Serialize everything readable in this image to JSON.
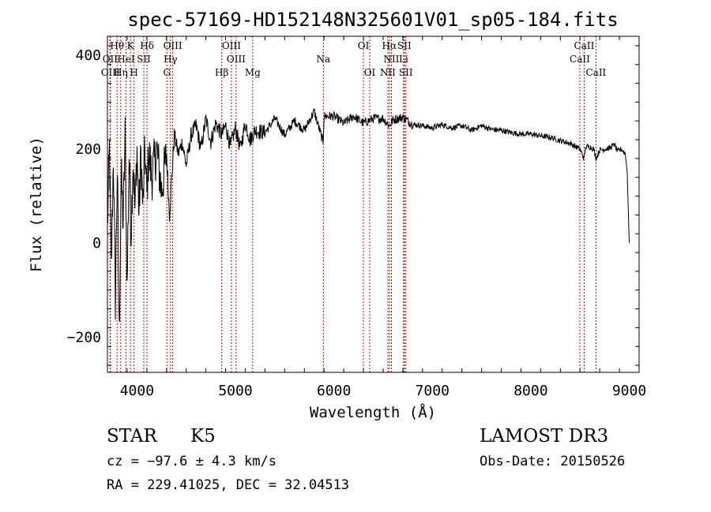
{
  "chart_data": {
    "type": "line",
    "title": "spec-57169-HD152148N325601V01_sp05-184.fits",
    "xlabel": "Wavelength (Å)",
    "ylabel": "Flux (relative)",
    "xlim": [
      3700,
      9100
    ],
    "ylim": [
      -275,
      440
    ],
    "x_ticks": [
      4000,
      5000,
      6000,
      7000,
      8000,
      9000
    ],
    "y_ticks": [
      -200,
      0,
      200,
      400
    ],
    "x_tick_labels": [
      "4000",
      "5000",
      "6000",
      "7000",
      "8000",
      "9000"
    ],
    "y_tick_labels": [
      "−200",
      "0",
      "200",
      "400"
    ],
    "series": [
      {
        "name": "flux",
        "color": "#000000",
        "anchors": [
          [
            3700,
            30
          ],
          [
            3720,
            200
          ],
          [
            3740,
            -60
          ],
          [
            3760,
            190
          ],
          [
            3780,
            -120
          ],
          [
            3800,
            160
          ],
          [
            3820,
            -200
          ],
          [
            3840,
            150
          ],
          [
            3860,
            40
          ],
          [
            3880,
            230
          ],
          [
            3900,
            -100
          ],
          [
            3920,
            190
          ],
          [
            3940,
            20
          ],
          [
            3960,
            180
          ],
          [
            3980,
            70
          ],
          [
            4000,
            200
          ],
          [
            4020,
            60
          ],
          [
            4040,
            190
          ],
          [
            4060,
            70
          ],
          [
            4080,
            200
          ],
          [
            4100,
            100
          ],
          [
            4120,
            195
          ],
          [
            4150,
            140
          ],
          [
            4200,
            200
          ],
          [
            4250,
            110
          ],
          [
            4300,
            190
          ],
          [
            4330,
            60
          ],
          [
            4380,
            230
          ],
          [
            4420,
            190
          ],
          [
            4460,
            215
          ],
          [
            4500,
            165
          ],
          [
            4550,
            230
          ],
          [
            4600,
            250
          ],
          [
            4650,
            200
          ],
          [
            4700,
            265
          ],
          [
            4750,
            215
          ],
          [
            4800,
            255
          ],
          [
            4860,
            230
          ],
          [
            4900,
            250
          ],
          [
            4950,
            205
          ],
          [
            5000,
            245
          ],
          [
            5050,
            200
          ],
          [
            5100,
            255
          ],
          [
            5150,
            220
          ],
          [
            5200,
            240
          ],
          [
            5300,
            235
          ],
          [
            5400,
            265
          ],
          [
            5500,
            230
          ],
          [
            5600,
            260
          ],
          [
            5700,
            240
          ],
          [
            5800,
            280
          ],
          [
            5890,
            215
          ],
          [
            5900,
            270
          ],
          [
            6000,
            270
          ],
          [
            6100,
            255
          ],
          [
            6200,
            270
          ],
          [
            6300,
            255
          ],
          [
            6400,
            265
          ],
          [
            6500,
            265
          ],
          [
            6563,
            250
          ],
          [
            6600,
            262
          ],
          [
            6700,
            268
          ],
          [
            6800,
            252
          ],
          [
            6900,
            250
          ],
          [
            7000,
            245
          ],
          [
            7100,
            252
          ],
          [
            7200,
            245
          ],
          [
            7300,
            250
          ],
          [
            7400,
            240
          ],
          [
            7500,
            250
          ],
          [
            7600,
            242
          ],
          [
            7700,
            240
          ],
          [
            7800,
            235
          ],
          [
            7900,
            232
          ],
          [
            8000,
            232
          ],
          [
            8100,
            228
          ],
          [
            8200,
            225
          ],
          [
            8300,
            218
          ],
          [
            8400,
            212
          ],
          [
            8500,
            200
          ],
          [
            8540,
            180
          ],
          [
            8560,
            205
          ],
          [
            8600,
            205
          ],
          [
            8640,
            200
          ],
          [
            8662,
            180
          ],
          [
            8700,
            198
          ],
          [
            8800,
            202
          ],
          [
            8850,
            210
          ],
          [
            8880,
            195
          ],
          [
            8920,
            200
          ],
          [
            8960,
            190
          ],
          [
            8980,
            150
          ],
          [
            9000,
            0
          ]
        ]
      }
    ],
    "spectral_lines": [
      {
        "label": "Hθ",
        "x": 3798,
        "row": 1
      },
      {
        "label": "OII",
        "x": 3727,
        "row": 2
      },
      {
        "label": "OIII",
        "x": 3730,
        "row": 3
      },
      {
        "label": "K",
        "x": 3934,
        "row": 1
      },
      {
        "label": "HeI",
        "x": 3889,
        "row": 2
      },
      {
        "label": "Hη",
        "x": 3835,
        "row": 3
      },
      {
        "label": "Hδ",
        "x": 4102,
        "row": 1
      },
      {
        "label": "SII",
        "x": 4069,
        "row": 2
      },
      {
        "label": "H",
        "x": 3970,
        "row": 3
      },
      {
        "label": "OIII",
        "x": 4363,
        "row": 1
      },
      {
        "label": "Hγ",
        "x": 4340,
        "row": 2
      },
      {
        "label": "G",
        "x": 4304,
        "row": 3
      },
      {
        "label": "Hβ",
        "x": 4861,
        "row": 3
      },
      {
        "label": "OIII",
        "x": 4959,
        "row": 1
      },
      {
        "label": "OIII",
        "x": 5007,
        "row": 2
      },
      {
        "label": "Mg",
        "x": 5175,
        "row": 3
      },
      {
        "label": "Na",
        "x": 5893,
        "row": 2
      },
      {
        "label": "OI",
        "x": 6300,
        "row": 1
      },
      {
        "label": "OI",
        "x": 6364,
        "row": 3
      },
      {
        "label": "Hα",
        "x": 6563,
        "row": 1
      },
      {
        "label": "SII",
        "x": 6716,
        "row": 1
      },
      {
        "label": "NII",
        "x": 6584,
        "row": 2
      },
      {
        "label": "Li",
        "x": 6708,
        "row": 2
      },
      {
        "label": "NII",
        "x": 6548,
        "row": 3
      },
      {
        "label": "SII",
        "x": 6731,
        "row": 3
      },
      {
        "label": "CaII",
        "x": 8542,
        "row": 1
      },
      {
        "label": "CaII",
        "x": 8498,
        "row": 2
      },
      {
        "label": "CaII",
        "x": 8662,
        "row": 3
      }
    ],
    "line_color": "#cc0000"
  },
  "info": {
    "object_class": "STAR",
    "subclass": "K5",
    "survey": "LAMOST DR3",
    "redshift": "cz = −97.6 ± 4.3 km/s",
    "obs_date": "Obs-Date: 20150526",
    "coords": "RA = 229.41025, DEC =  32.04513"
  }
}
